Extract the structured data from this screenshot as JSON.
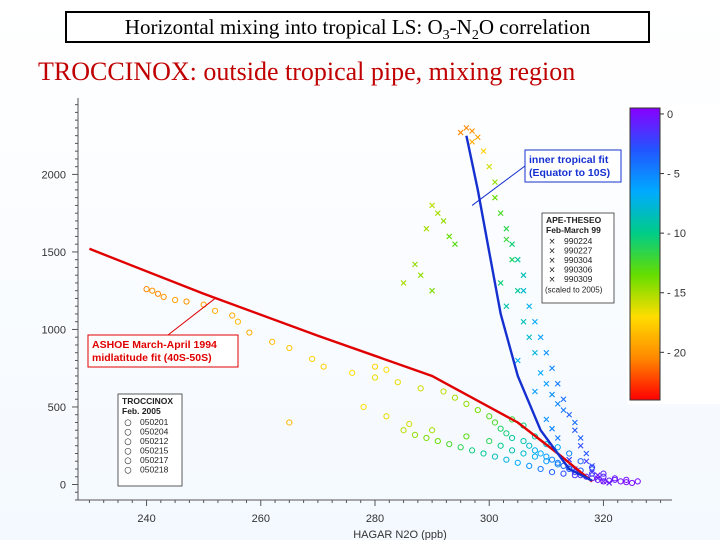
{
  "header": {
    "title_prefix": "Horizontal mixing into tropical LS:  O",
    "title_sub1": "3",
    "title_mid": "-N",
    "title_sub2": "2",
    "title_suffix": "O correlation",
    "subtitle": "TROCCINOX:  outside tropical pipe, mixing region"
  },
  "chart_data": {
    "type": "scatter",
    "xlabel": "HAGAR N2O (ppb)",
    "ylabel": "",
    "xlim": [
      228,
      332
    ],
    "ylim": [
      -100,
      2480
    ],
    "x_ticks": [
      240,
      260,
      280,
      300,
      320
    ],
    "y_ticks": [
      0,
      500,
      1000,
      1500,
      2000
    ],
    "colorbar": {
      "ticks": [
        0,
        -5,
        -10,
        -15,
        -20
      ],
      "range": [
        -24,
        0.5
      ],
      "colors": [
        "#ff0000",
        "#ff8800",
        "#ffdd00",
        "#66dd00",
        "#00cc88",
        "#00aaff",
        "#2255ff",
        "#8800ff"
      ]
    },
    "fits": [
      {
        "name": "ASHOE March-April 1994 midlatitude fit (40S-50S)",
        "label_lines": [
          "ASHOE March-April 1994",
          "midlatitude fit (40S-50S)"
        ],
        "color": "#e00000",
        "points": [
          [
            230,
            1520
          ],
          [
            250,
            1230
          ],
          [
            270,
            960
          ],
          [
            290,
            700
          ],
          [
            305,
            400
          ],
          [
            312,
            200
          ],
          [
            318,
            20
          ]
        ]
      },
      {
        "name": "inner tropical fit (Equator to 10S)",
        "label_lines": [
          "inner tropical fit",
          "(Equator to 10S)"
        ],
        "color": "#1530d0",
        "points": [
          [
            296,
            2250
          ],
          [
            298,
            1900
          ],
          [
            300,
            1500
          ],
          [
            302,
            1100
          ],
          [
            305,
            700
          ],
          [
            309,
            350
          ],
          [
            314,
            100
          ],
          [
            318,
            25
          ]
        ]
      }
    ],
    "legends": [
      {
        "title_lines": [
          "APE-THESEO",
          "Feb-March 99"
        ],
        "marker": "×",
        "entries": [
          "990224",
          "990227",
          "990304",
          "990306",
          "990309"
        ],
        "note": "(scaled to 2005)"
      },
      {
        "title_lines": [
          "TROCCINOX",
          "Feb. 2005"
        ],
        "marker": "○",
        "entries": [
          "050201",
          "050204",
          "050212",
          "050215",
          "050217",
          "050218"
        ]
      }
    ],
    "series": [
      {
        "name": "APE-THESEO Feb-March 99",
        "marker": "x",
        "points": [
          [
            296,
            2300,
            -20.5
          ],
          [
            297,
            2280,
            -20.0
          ],
          [
            295,
            2270,
            -20.5
          ],
          [
            298,
            2240,
            -19.5
          ],
          [
            297,
            2210,
            -19.0
          ],
          [
            299,
            2150,
            -17.5
          ],
          [
            300,
            2050,
            -16.0
          ],
          [
            301,
            1950,
            -14.5
          ],
          [
            301,
            1850,
            -13.5
          ],
          [
            302,
            1750,
            -12.5
          ],
          [
            303,
            1650,
            -11.5
          ],
          [
            304,
            1550,
            -10.5
          ],
          [
            305,
            1450,
            -9.5
          ],
          [
            306,
            1350,
            -8.5
          ],
          [
            306,
            1250,
            -8.0
          ],
          [
            307,
            1150,
            -7.0
          ],
          [
            308,
            1050,
            -6.5
          ],
          [
            309,
            950,
            -6.0
          ],
          [
            310,
            850,
            -5.5
          ],
          [
            311,
            750,
            -5.0
          ],
          [
            312,
            650,
            -4.5
          ],
          [
            313,
            550,
            -4.0
          ],
          [
            314,
            450,
            -3.5
          ],
          [
            315,
            350,
            -3.0
          ],
          [
            316,
            250,
            -2.5
          ],
          [
            317,
            150,
            -2.0
          ],
          [
            318,
            80,
            -1.5
          ],
          [
            319,
            40,
            -1.0
          ],
          [
            320,
            20,
            -0.5
          ],
          [
            321,
            10,
            -0.5
          ],
          [
            290,
            1800,
            -15.5
          ],
          [
            291,
            1750,
            -15.0
          ],
          [
            292,
            1700,
            -14.5
          ],
          [
            289,
            1650,
            -15.0
          ],
          [
            293,
            1600,
            -13.5
          ],
          [
            294,
            1550,
            -13.0
          ],
          [
            288,
            1350,
            -14.5
          ],
          [
            290,
            1250,
            -14.0
          ],
          [
            285,
            1300,
            -15.0
          ],
          [
            287,
            1420,
            -14.5
          ],
          [
            303,
            1580,
            -12.0
          ],
          [
            304,
            1450,
            -11.0
          ],
          [
            302,
            1300,
            -10.5
          ],
          [
            305,
            1250,
            -9.5
          ],
          [
            303,
            1150,
            -9.0
          ],
          [
            306,
            1050,
            -8.5
          ],
          [
            307,
            950,
            -8.0
          ],
          [
            308,
            850,
            -7.5
          ],
          [
            305,
            800,
            -7.0
          ],
          [
            309,
            720,
            -6.5
          ],
          [
            310,
            650,
            -6.0
          ],
          [
            311,
            580,
            -5.5
          ],
          [
            312,
            520,
            -5.0
          ],
          [
            308,
            600,
            -6.0
          ],
          [
            313,
            480,
            -4.5
          ],
          [
            315,
            400,
            -4.0
          ],
          [
            316,
            300,
            -3.5
          ],
          [
            317,
            200,
            -3.0
          ],
          [
            318,
            120,
            -2.5
          ],
          [
            314,
            160,
            -2.0
          ],
          [
            312,
            300,
            -4.5
          ],
          [
            310,
            420,
            -5.5
          ],
          [
            311,
            360,
            -5.0
          ],
          [
            315,
            100,
            -1.5
          ],
          [
            319,
            60,
            -0.5
          ]
        ]
      },
      {
        "name": "TROCCINOX Feb. 2005",
        "marker": "o",
        "points": [
          [
            240,
            1260,
            -20.5
          ],
          [
            241,
            1250,
            -20.0
          ],
          [
            242,
            1230,
            -20.5
          ],
          [
            243,
            1210,
            -20.0
          ],
          [
            245,
            1190,
            -19.5
          ],
          [
            247,
            1180,
            -20.0
          ],
          [
            250,
            1160,
            -19.5
          ],
          [
            252,
            1120,
            -19.0
          ],
          [
            255,
            1090,
            -19.0
          ],
          [
            256,
            1050,
            -18.5
          ],
          [
            258,
            980,
            -19.0
          ],
          [
            262,
            920,
            -18.5
          ],
          [
            265,
            880,
            -18.0
          ],
          [
            269,
            810,
            -17.5
          ],
          [
            271,
            760,
            -17.5
          ],
          [
            276,
            720,
            -17.0
          ],
          [
            280,
            690,
            -16.5
          ],
          [
            284,
            660,
            -16.5
          ],
          [
            288,
            620,
            -16.0
          ],
          [
            292,
            600,
            -15.5
          ],
          [
            294,
            560,
            -15.0
          ],
          [
            296,
            520,
            -14.5
          ],
          [
            298,
            480,
            -14.0
          ],
          [
            300,
            440,
            -13.0
          ],
          [
            301,
            400,
            -12.5
          ],
          [
            302,
            360,
            -11.0
          ],
          [
            303,
            330,
            -10.5
          ],
          [
            304,
            300,
            -9.5
          ],
          [
            306,
            280,
            -9.0
          ],
          [
            307,
            250,
            -8.0
          ],
          [
            308,
            220,
            -7.0
          ],
          [
            309,
            200,
            -6.5
          ],
          [
            310,
            180,
            -6.0
          ],
          [
            311,
            160,
            -5.0
          ],
          [
            312,
            140,
            -4.5
          ],
          [
            313,
            120,
            -3.5
          ],
          [
            314,
            100,
            -3.0
          ],
          [
            315,
            80,
            -2.0
          ],
          [
            316,
            60,
            -1.5
          ],
          [
            317,
            50,
            -1.0
          ],
          [
            318,
            40,
            -0.5
          ],
          [
            319,
            30,
            -0.5
          ],
          [
            320,
            20,
            0.0
          ],
          [
            321,
            25,
            -0.5
          ],
          [
            322,
            30,
            -0.5
          ],
          [
            323,
            20,
            0.0
          ],
          [
            324,
            15,
            0.0
          ],
          [
            325,
            10,
            0.0
          ],
          [
            285,
            350,
            -15.5
          ],
          [
            287,
            320,
            -14.5
          ],
          [
            289,
            300,
            -14.0
          ],
          [
            291,
            280,
            -13.5
          ],
          [
            293,
            260,
            -12.5
          ],
          [
            295,
            240,
            -11.5
          ],
          [
            297,
            220,
            -10.5
          ],
          [
            299,
            200,
            -9.5
          ],
          [
            301,
            180,
            -8.5
          ],
          [
            303,
            160,
            -7.5
          ],
          [
            305,
            140,
            -6.5
          ],
          [
            307,
            120,
            -5.5
          ],
          [
            309,
            100,
            -4.5
          ],
          [
            311,
            80,
            -3.5
          ],
          [
            313,
            70,
            -2.5
          ],
          [
            315,
            60,
            -1.5
          ],
          [
            306,
            380,
            -10.5
          ],
          [
            304,
            420,
            -12.0
          ],
          [
            308,
            310,
            -9.0
          ],
          [
            310,
            260,
            -8.0
          ],
          [
            312,
            240,
            -6.5
          ],
          [
            314,
            200,
            -5.0
          ],
          [
            316,
            150,
            -3.5
          ],
          [
            318,
            110,
            -2.5
          ],
          [
            320,
            70,
            -1.0
          ],
          [
            265,
            400,
            -18.5
          ],
          [
            278,
            500,
            -17.0
          ],
          [
            282,
            440,
            -16.5
          ],
          [
            286,
            390,
            -16.0
          ],
          [
            290,
            350,
            -15.0
          ],
          [
            296,
            310,
            -13.0
          ],
          [
            300,
            280,
            -11.5
          ],
          [
            302,
            250,
            -10.0
          ],
          [
            304,
            220,
            -9.0
          ],
          [
            306,
            200,
            -8.0
          ],
          [
            308,
            180,
            -7.0
          ],
          [
            310,
            150,
            -6.0
          ],
          [
            312,
            130,
            -5.0
          ],
          [
            314,
            110,
            -4.0
          ],
          [
            316,
            90,
            -3.0
          ],
          [
            318,
            70,
            -2.0
          ],
          [
            320,
            50,
            -1.0
          ],
          [
            322,
            40,
            -0.5
          ],
          [
            324,
            30,
            0.0
          ],
          [
            326,
            20,
            0.0
          ],
          [
            280,
            760,
            -17.5
          ],
          [
            282,
            740,
            -17.0
          ]
        ]
      }
    ]
  }
}
